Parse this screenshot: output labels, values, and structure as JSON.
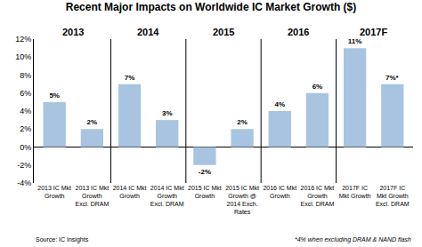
{
  "chart_data": {
    "type": "bar",
    "title": "Recent Major Impacts on Worldwide IC Market Growth ($)",
    "categories": [
      "2013 IC Mkt\nGrowth",
      "2013 IC Mkt\nGrowth\nExcl. DRAM",
      "2014 IC Mkt\nGrowth",
      "2014 IC Mkt\nGrowth\nExcl. DRAM",
      "2015 IC Mkt\nGrowth",
      "2015 IC Mkt\nGrowth @\n2014 Exch.\nRates",
      "2016 IC Mkt\nGrowth",
      "2016 IC Mkt\nGrowth\nExcl. DRAM",
      "2017F IC\nMkt Growth",
      "2017F IC\nMkt Growth\nExcl. DRAM"
    ],
    "values": [
      5,
      2,
      7,
      3,
      -2,
      2,
      4,
      6,
      11,
      7
    ],
    "value_labels": [
      "5%",
      "2%",
      "7%",
      "3%",
      "-2%",
      "2%",
      "4%",
      "6%",
      "11%",
      "7%*"
    ],
    "data_labels": true,
    "color": "#a8c4e0",
    "group_labels": [
      "2013",
      "2014",
      "2015",
      "2016",
      "2017F"
    ],
    "source": "Source: IC Insights",
    "footnote": "*4% when excluding DRAM & NAND flash",
    "ylim": [
      -4,
      12
    ],
    "yticks": [
      {
        "value": -4,
        "label": "-4%"
      },
      {
        "value": -2,
        "label": "-2%"
      },
      {
        "value": 0,
        "label": "0%"
      },
      {
        "value": 2,
        "label": "2%"
      },
      {
        "value": 4,
        "label": "4%"
      },
      {
        "value": 6,
        "label": "6%"
      },
      {
        "value": 8,
        "label": "8%"
      },
      {
        "value": 10,
        "label": "10%"
      },
      {
        "value": 12,
        "label": "12%"
      }
    ],
    "grid": false
  }
}
